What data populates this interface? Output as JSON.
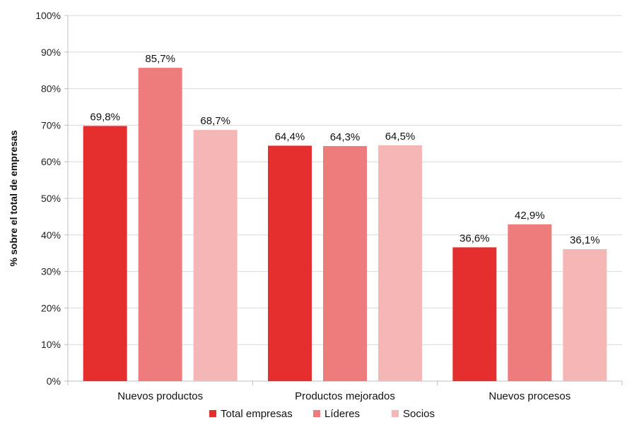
{
  "chart_data": {
    "type": "bar",
    "title": "",
    "xlabel": "",
    "ylabel": "% sobre el total de empresas",
    "ylim": [
      0,
      100
    ],
    "yticks": [
      "0%",
      "10%",
      "20%",
      "30%",
      "40%",
      "50%",
      "60%",
      "70%",
      "80%",
      "90%",
      "100%"
    ],
    "categories": [
      "Nuevos productos",
      "Productos mejorados",
      "Nuevos procesos"
    ],
    "grid": true,
    "legend_position": "bottom",
    "series": [
      {
        "name": "Total empresas",
        "color": "#e52f2f",
        "values": [
          69.8,
          64.4,
          36.6
        ],
        "labels": [
          "69,8%",
          "64,4%",
          "36,6%"
        ]
      },
      {
        "name": "Líderes",
        "color": "#ee7c7c",
        "values": [
          85.7,
          64.3,
          42.9
        ],
        "labels": [
          "85,7%",
          "64,3%",
          "42,9%"
        ]
      },
      {
        "name": "Socios",
        "color": "#f5b6b6",
        "values": [
          68.7,
          64.5,
          36.1
        ],
        "labels": [
          "68,7%",
          "64,5%",
          "36,1%"
        ]
      }
    ]
  }
}
